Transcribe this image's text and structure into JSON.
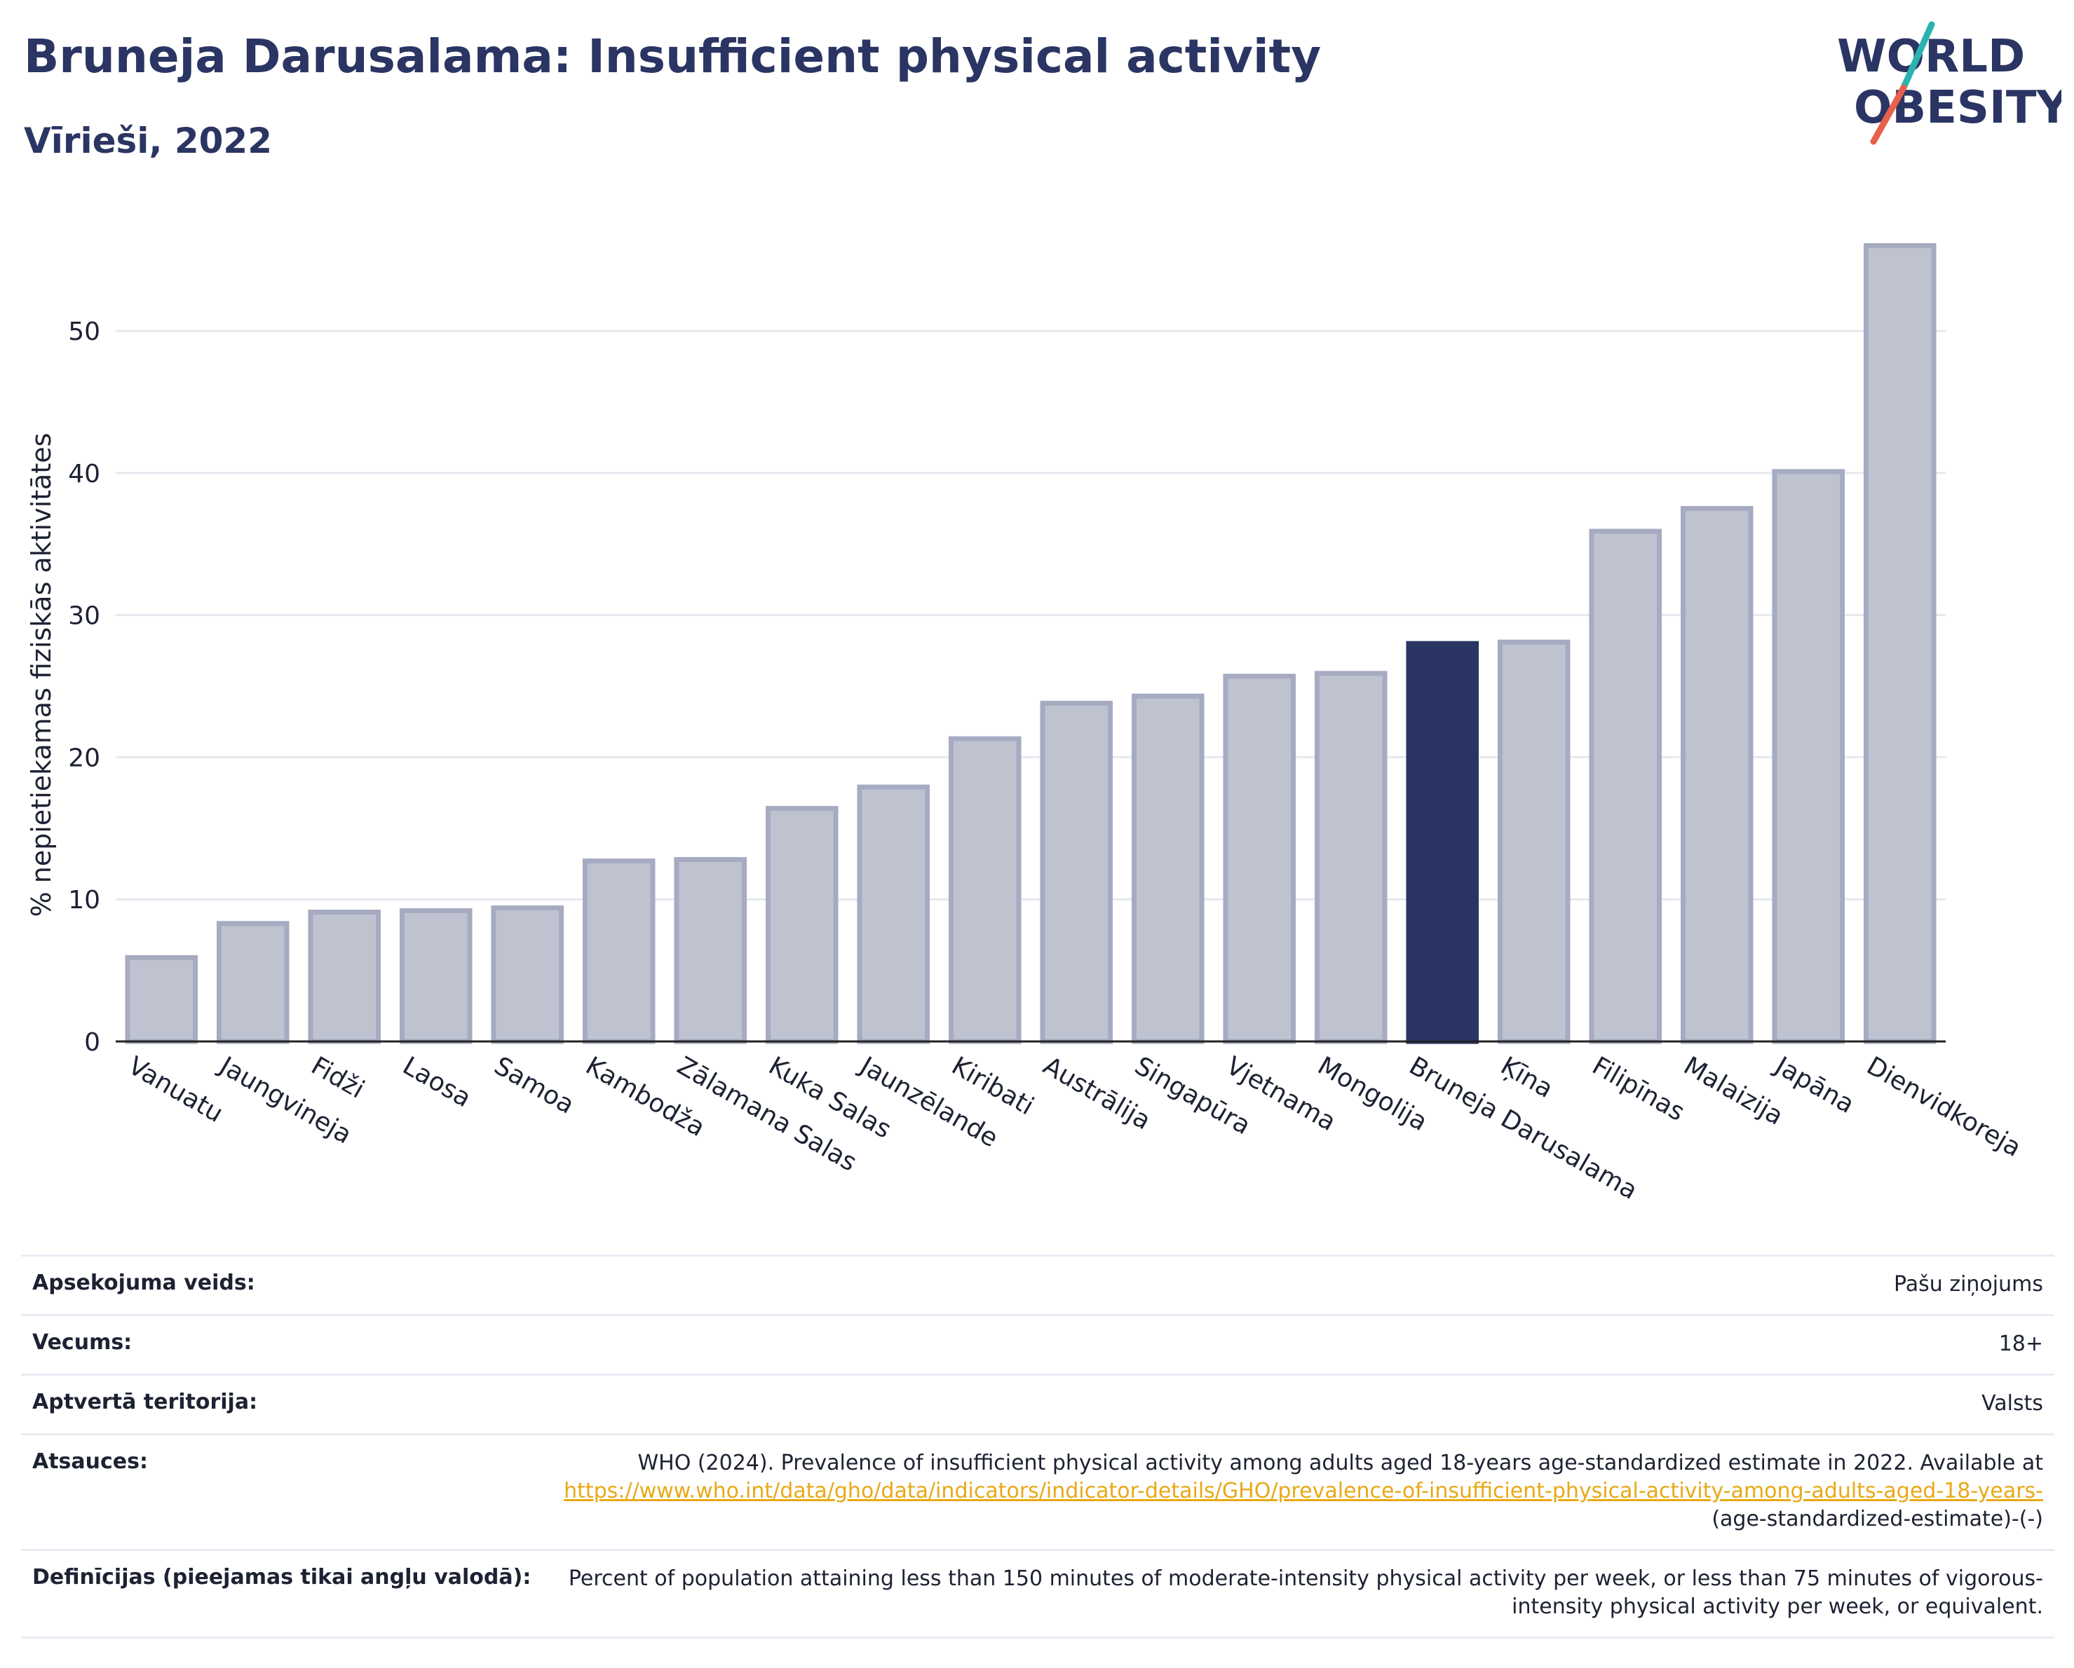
{
  "header": {
    "title": "Bruneja Darusalama: Insufficient physical activity",
    "subtitle": "Vīrieši, 2022"
  },
  "logo": {
    "line1": "WORLD",
    "line2": "OBESITY",
    "colors": {
      "text": "#2a3563",
      "slash_teal": "#2bb3b1",
      "slash_coral": "#e8604c"
    }
  },
  "colors": {
    "bar_default": "#bfc3d0",
    "bar_default_stroke": "#a6abc2",
    "bar_highlight": "#2a3563",
    "gridline": "#e6e8ef",
    "axis": "#222222"
  },
  "chart_data": {
    "type": "bar",
    "title": "",
    "xlabel": "",
    "ylabel": "% nepietiekamas fiziskās aktivitātes",
    "ylim": [
      0,
      57.5
    ],
    "yticks": [
      0,
      10,
      20,
      30,
      40,
      50
    ],
    "grid": true,
    "highlight": "Bruneja Darusalama",
    "categories": [
      "Vanuatu",
      "Jaungvineja",
      "Fidži",
      "Laosa",
      "Samoa",
      "Kambodža",
      "Zālamana Salas",
      "Kuka Salas",
      "Jaunzēlande",
      "Kiribati",
      "Austrālija",
      "Singapūra",
      "Vjetnama",
      "Mongolija",
      "Bruneja Darusalama",
      "Ķīna",
      "Filipīnas",
      "Malaizija",
      "Japāna",
      "Dienvidkoreja"
    ],
    "values": [
      5.9,
      8.3,
      9.1,
      9.2,
      9.4,
      12.7,
      12.8,
      16.4,
      17.9,
      21.3,
      23.8,
      24.3,
      25.7,
      25.9,
      28.0,
      28.1,
      35.9,
      37.5,
      40.1,
      56.0
    ]
  },
  "meta": [
    {
      "label": "Apsekojuma veids:",
      "value": "Pašu ziņojums"
    },
    {
      "label": "Vecums:",
      "value": "18+"
    },
    {
      "label": "Aptvertā teritorija:",
      "value": "Valsts"
    },
    {
      "label": "Atsauces:",
      "value_prefix": "WHO (2024). Prevalence of insufficient physical activity among adults aged 18-years age-standardized estimate in 2022. Available at",
      "link": "https://www.who.int/data/gho/data/indicators/indicator-details/GHO/prevalence-of-insufficient-physical-activity-among-adults-aged-18-years-",
      "value_suffix": "(age-standardized-estimate)-(-)"
    },
    {
      "label": "Definīcijas (pieejamas tikai angļu valodā):",
      "value": "Percent of population attaining less than 150 minutes of moderate-intensity physical activity per week, or less than 75 minutes of vigorous-intensity physical activity per week, or equivalent."
    }
  ]
}
